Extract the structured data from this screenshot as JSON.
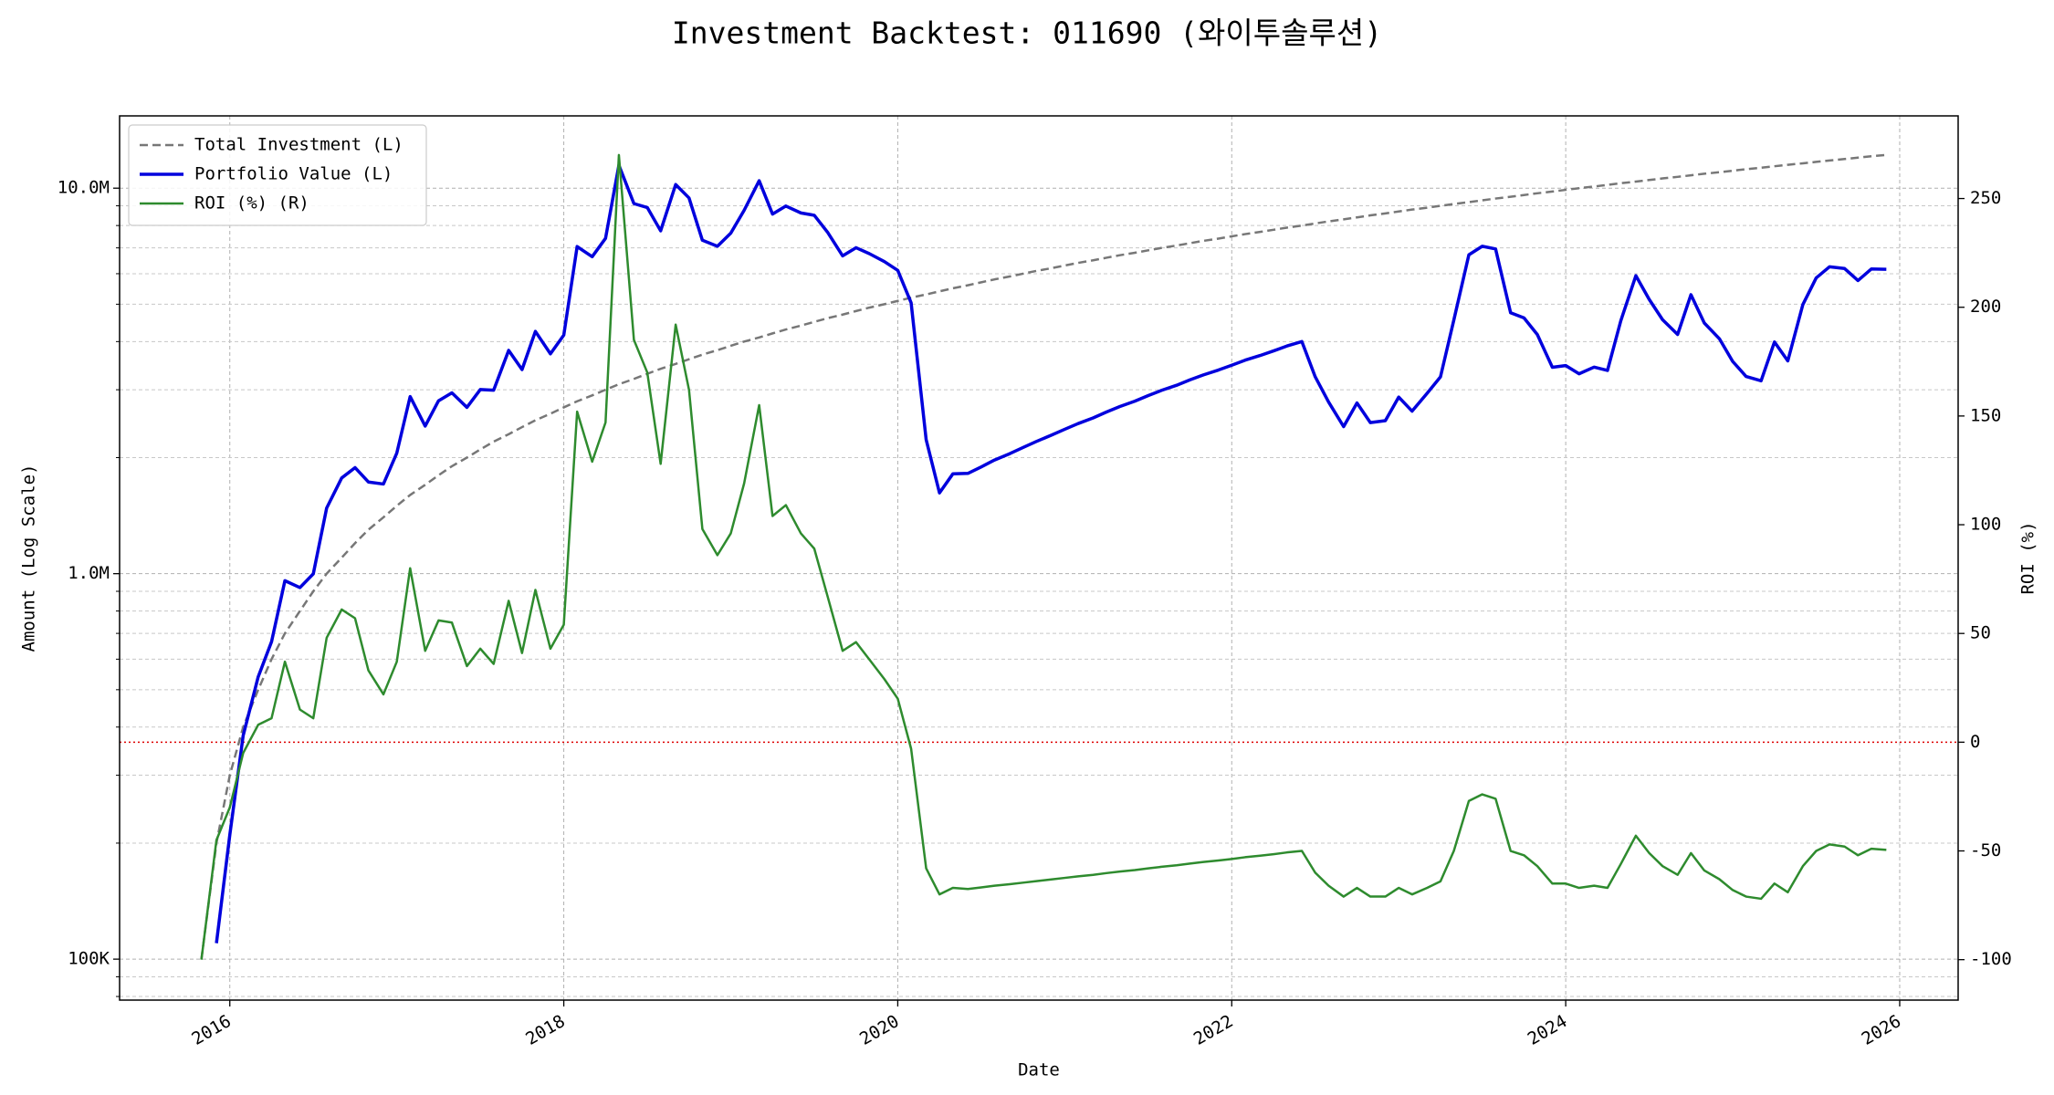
{
  "chart_data": {
    "type": "line",
    "title": "Investment Backtest: 011690 (와이투솔루션)",
    "xlabel": "Date",
    "ylabel": "Amount (Log Scale)",
    "y2label": "ROI (%)",
    "ylabel_color": "#0000cc",
    "y2label_color": "#228b22",
    "yscale": "log",
    "grid": true,
    "legend": "upper left",
    "xlim": [
      2015.34,
      2026.35
    ],
    "xticks": [
      2016,
      2018,
      2020,
      2022,
      2024,
      2026
    ],
    "ylim": [
      78300,
      15400000
    ],
    "yticks": [
      {
        "value": 100000,
        "label": "100K"
      },
      {
        "value": 1000000,
        "label": "1.0M"
      },
      {
        "value": 10000000,
        "label": "10.0M"
      }
    ],
    "yminorticks": [
      80000,
      90000,
      200000,
      300000,
      400000,
      500000,
      600000,
      700000,
      800000,
      900000,
      2000000,
      3000000,
      4000000,
      5000000,
      6000000,
      7000000,
      8000000,
      9000000
    ],
    "y2lim": [
      -118.6,
      288
    ],
    "y2ticks": [
      -100,
      -50,
      0,
      50,
      100,
      150,
      200,
      250
    ],
    "hline": {
      "value": 0,
      "axis": "y2",
      "color": "#dd0000"
    },
    "x": [
      2015.83,
      2015.92,
      2016.0,
      2016.08,
      2016.17,
      2016.25,
      2016.33,
      2016.42,
      2016.5,
      2016.58,
      2016.67,
      2016.75,
      2016.83,
      2016.92,
      2017.0,
      2017.08,
      2017.17,
      2017.25,
      2017.33,
      2017.42,
      2017.5,
      2017.58,
      2017.67,
      2017.75,
      2017.83,
      2017.92,
      2018.0,
      2018.08,
      2018.17,
      2018.25,
      2018.33,
      2018.42,
      2018.5,
      2018.58,
      2018.67,
      2018.75,
      2018.83,
      2018.92,
      2019.0,
      2019.08,
      2019.17,
      2019.25,
      2019.33,
      2019.42,
      2019.5,
      2019.58,
      2019.67,
      2019.75,
      2019.83,
      2019.92,
      2020.0,
      2020.08,
      2020.17,
      2020.25,
      2020.33,
      2020.42,
      2020.5,
      2020.58,
      2020.67,
      2020.75,
      2020.83,
      2020.92,
      2021.0,
      2021.08,
      2021.17,
      2021.25,
      2021.33,
      2021.42,
      2021.5,
      2021.58,
      2021.67,
      2021.75,
      2021.83,
      2021.92,
      2022.0,
      2022.08,
      2022.17,
      2022.25,
      2022.33,
      2022.42,
      2022.5,
      2022.58,
      2022.67,
      2022.75,
      2022.83,
      2022.92,
      2023.0,
      2023.08,
      2023.17,
      2023.25,
      2023.33,
      2023.42,
      2023.5,
      2023.58,
      2023.67,
      2023.75,
      2023.83,
      2023.92,
      2024.0,
      2024.08,
      2024.17,
      2024.25,
      2024.33,
      2024.42,
      2024.5,
      2024.58,
      2024.67,
      2024.75,
      2024.83,
      2024.92,
      2025.0,
      2025.08,
      2025.17,
      2025.25,
      2025.33,
      2025.42,
      2025.5,
      2025.58,
      2025.67,
      2025.75,
      2025.83,
      2025.92
    ],
    "series": [
      {
        "name": "Total Investment (L)",
        "color": "#777777",
        "dash": true,
        "width": 2.5,
        "values": [
          100000,
          200000,
          300000,
          400000,
          500000,
          600000,
          700000,
          800000,
          900000,
          1000000,
          1100000,
          1200000,
          1300000,
          1400000,
          1500000,
          1600000,
          1700000,
          1800000,
          1900000,
          2000000,
          2100000,
          2200000,
          2300000,
          2400000,
          2500000,
          2600000,
          2700000,
          2800000,
          2900000,
          3000000,
          3100000,
          3200000,
          3300000,
          3400000,
          3500000,
          3600000,
          3700000,
          3800000,
          3900000,
          4000000,
          4100000,
          4200000,
          4300000,
          4400000,
          4500000,
          4600000,
          4700000,
          4800000,
          4900000,
          5000000,
          5100000,
          5200000,
          5300000,
          5400000,
          5500000,
          5600000,
          5700000,
          5800000,
          5900000,
          6000000,
          6100000,
          6200000,
          6300000,
          6400000,
          6500000,
          6600000,
          6700000,
          6800000,
          6900000,
          7000000,
          7100000,
          7200000,
          7300000,
          7400000,
          7500000,
          7600000,
          7700000,
          7800000,
          7900000,
          8000000,
          8100000,
          8200000,
          8300000,
          8400000,
          8500000,
          8600000,
          8700000,
          8800000,
          8900000,
          9000000,
          9100000,
          9200000,
          9300000,
          9400000,
          9500000,
          9600000,
          9700000,
          9800000,
          9900000,
          10000000,
          10100000,
          10200000,
          10300000,
          10400000,
          10500000,
          10600000,
          10700000,
          10800000,
          10900000,
          11000000,
          11100000,
          11200000,
          11300000,
          11400000,
          11500000,
          11600000,
          11700000,
          11800000,
          11900000,
          12000000,
          12100000,
          12200000
        ]
      },
      {
        "name": "Portfolio Value (L)",
        "color": "#0000dd",
        "width": 3.5,
        "values": [
          null,
          110000,
          210000,
          380000,
          540000,
          666000,
          959000,
          920000,
          999000,
          1480000,
          1771000,
          1884000,
          1729000,
          1708000,
          2055000,
          2880000,
          2414000,
          2808000,
          2945000,
          2700000,
          3003000,
          2992000,
          3795000,
          3384000,
          4250000,
          3718000,
          4158000,
          7056000,
          6641000,
          7410000,
          11470000,
          9120000,
          8910000,
          7752000,
          10220000,
          9432000,
          7326000,
          7068000,
          7644000,
          8760000,
          10455000,
          8568000,
          8987000,
          8624000,
          8505000,
          7682000,
          6674000,
          7008000,
          6762000,
          6450000,
          6120000,
          5044000,
          2226000,
          1620000,
          1815000,
          1820000,
          1892400,
          1972000,
          2047300,
          2124000,
          2202100,
          2287800,
          2368800,
          2451200,
          2535000,
          2626800,
          2713500,
          2801600,
          2898000,
          2989000,
          3081400,
          3182400,
          3277700,
          3374400,
          3472500,
          3579600,
          3680600,
          3783000,
          3894700,
          4000000,
          3240000,
          2788000,
          2407000,
          2772000,
          2465000,
          2494000,
          2871000,
          2640000,
          2937000,
          3240000,
          4550000,
          6716000,
          7068000,
          6956000,
          4750000,
          4608000,
          4171000,
          3430000,
          3465000,
          3300000,
          3434000,
          3366000,
          4532000,
          5928000,
          5145000,
          4558000,
          4173000,
          5292000,
          4469000,
          4070000,
          3552000,
          3248000,
          3164000,
          3990000,
          3565000,
          4988000,
          5850000,
          6254000,
          6188000,
          5760000,
          6171000,
          6161000
        ]
      },
      {
        "name": "ROI (%) (R)",
        "color": "#2e8b2e",
        "width": 2.5,
        "axis": "y2",
        "values": [
          -100,
          -45,
          -30,
          -5,
          8,
          11,
          37,
          15,
          11,
          48,
          61,
          57,
          33,
          22,
          37,
          80,
          42,
          56,
          55,
          35,
          43,
          36,
          65,
          41,
          70,
          43,
          54,
          152,
          129,
          147,
          270,
          185,
          170,
          128,
          192,
          162,
          98,
          86,
          96,
          119,
          155,
          104,
          109,
          96,
          89,
          67,
          42,
          46,
          38,
          29,
          20,
          -3,
          -58,
          -70,
          -67,
          -67.5,
          -66.8,
          -66,
          -65.3,
          -64.6,
          -63.9,
          -63.1,
          -62.4,
          -61.7,
          -61,
          -60.2,
          -59.5,
          -58.8,
          -58,
          -57.3,
          -56.6,
          -55.8,
          -55.1,
          -54.4,
          -53.7,
          -52.9,
          -52.2,
          -51.5,
          -50.7,
          -50,
          -60,
          -66,
          -71,
          -67,
          -71,
          -71,
          -67,
          -70,
          -67,
          -64,
          -50,
          -27,
          -24,
          -26,
          -50,
          -52,
          -57,
          -65,
          -65,
          -67,
          -66,
          -67,
          -56,
          -43,
          -51,
          -57,
          -61,
          -51,
          -59,
          -63,
          -68,
          -71,
          -72,
          -65,
          -69,
          -57,
          -50,
          -47,
          -48,
          -52,
          -49,
          -49.5
        ]
      }
    ]
  }
}
